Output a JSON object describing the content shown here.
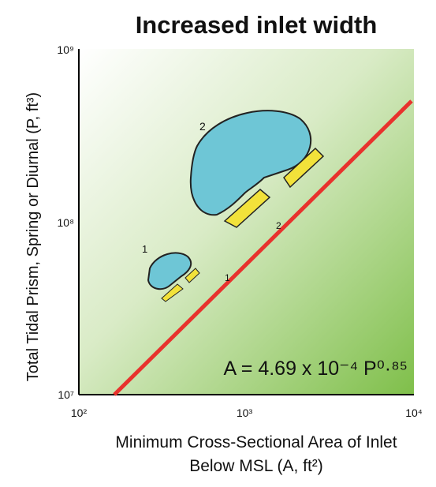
{
  "title": "Increased inlet width",
  "y_axis_label": "Total Tidal Prism, Spring or Diurnal (P, ft³)",
  "x_axis_label": [
    "Minimum Cross-Sectional Area of Inlet",
    "Below MSL (A, ft²)"
  ],
  "x_tick_labels": [
    "10²",
    "10³",
    "10⁴"
  ],
  "y_tick_labels": [
    "10⁷",
    "10⁸",
    "10⁹"
  ],
  "equation": "A = 4.69 x 10⁻⁴ P⁰·⁸⁵",
  "shape_labels": [
    "1",
    "2"
  ],
  "line_labels": [
    "1",
    "2"
  ]
}
